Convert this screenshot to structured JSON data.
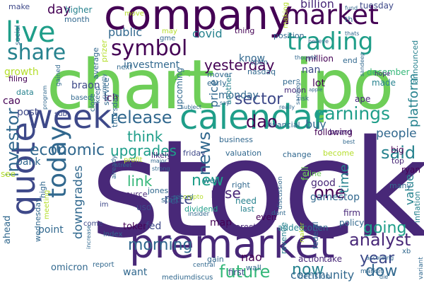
{
  "palette": [
    "#440154",
    "#482878",
    "#3e4989",
    "#31688e",
    "#26828e",
    "#1f9e89",
    "#35b779",
    "#6ece58",
    "#b5de2b",
    "#fde725"
  ],
  "words": {
    "stock": "stock",
    "chart": "chart",
    "ipo": "ipo",
    "company": "company",
    "premarket": "premarket",
    "calendar": "calendar",
    "market": "market",
    "week": "week",
    "quote": "quote",
    "live": "live",
    "symbol": "symbol",
    "trading": "trading",
    "share": "share",
    "today": "today",
    "earnings": "earnings",
    "future": "future",
    "analyst": "analyst",
    "investor": "investor",
    "release": "release",
    "economic": "economic",
    "news": "news",
    "sector": "sector",
    "dao": "dao",
    "said": "said",
    "yesterday": "yesterday",
    "morning": "morning",
    "going": "going",
    "year": "year",
    "dow": "dow",
    "now": "now",
    "upgrades": "upgrades",
    "link": "link",
    "think": "think",
    "new": "new",
    "one": "one",
    "time": "time",
    "platform": "platform",
    "downgrades": "downgrades",
    "rose": "rose",
    "rate": "rate",
    "value": "value",
    "people": "people",
    "community": "community",
    "growth": "growth",
    "price": "price",
    "day": "day",
    "public": "public",
    "covid": "covid",
    "billion": "billion",
    "tuesday": "tuesday",
    "make": "make",
    "higher": "higher",
    "month": "month",
    "investment": "investment",
    "braon": "braon",
    "cao": "cao",
    "post": "post",
    "data": "data",
    "filing": "filing",
    "lch": "lch",
    "bank": "bank",
    "see": "see",
    "ahead": "ahead",
    "point": "point",
    "omicron": "omicron",
    "want": "want",
    "token": "token",
    "fed": "fed",
    "map": "map",
    "nao": "nao",
    "interest": "interest",
    "added": "added",
    "cohen": "cohen",
    "action": "action",
    "take": "take",
    "gamestop": "gamestop",
    "good": "good",
    "line": "line",
    "buy": "buy",
    "lot": "lot",
    "nan": "nan",
    "december": "december",
    "made": "made",
    "million": "million",
    "end": "end",
    "know": "know",
    "monday": "monday",
    "nasdaq": "nasdaq",
    "moon": "moon",
    "per": "per",
    "usd": "usd",
    "jones": "jones",
    "start": "start",
    "need": "need",
    "well": "well",
    "friday": "friday",
    "likely": "likely",
    "valuation": "valuation",
    "change": "change",
    "become": "become",
    "following": "following",
    "board": "board",
    "financial": "financial",
    "firm": "firm",
    "policy": "policy",
    "federal": "federal",
    "inflation": "inflation",
    "ryan": "ryan",
    "big": "big",
    "top": "top",
    "many": "many",
    "fell": "fell",
    "right": "right",
    "source": "source",
    "gain": "gain",
    "first": "first",
    "wall": "wall",
    "even": "even",
    "last": "last",
    "revenue": "revenue",
    "decision": "decision",
    "upcoming": "upcoming",
    "business": "business",
    "another": "another",
    "ape": "ape",
    "hope": "hope",
    "announced": "announced",
    "position": "position",
    "mover": "mover",
    "early": "early",
    "open": "open",
    "thing": "thing",
    "move": "move",
    "may": "may",
    "gme": "gme",
    "next": "next",
    "average": "average",
    "prizer": "prizer",
    "social": "social",
    "service": "service",
    "thursday": "thursday",
    "keep": "keep",
    "close": "close",
    "sub": "sub",
    "based": "based",
    "gained": "gained",
    "wednesday": "wednesday",
    "high": "high",
    "meeting": "meeting",
    "come": "come",
    "report": "report",
    "im": "im",
    "index": "index",
    "medium": "medium",
    "discus": "discus",
    "central": "central",
    "making": "making",
    "th": "th",
    "fund": "fund",
    "thats": "thats",
    "believe": "believe",
    "thought": "thought",
    "risk": "risk",
    "really": "really",
    "subject": "subject",
    "say": "say",
    "best": "best",
    "street": "street",
    "dividend": "dividend",
    "record": "record",
    "crypto": "crypto",
    "insider": "insider",
    "according": "according",
    "xb": "xb",
    "variant": "variant",
    "die": "die",
    "profit": "profit",
    "major": "major",
    "strong": "strong",
    "already": "already",
    "dont": "dont",
    "increase": "increase",
    "currently": "currently",
    "discussion": "discussion",
    "program": "program",
    "sandiego": "sandiego",
    "sandeep": "sandeep",
    "apple": "apple",
    "maker": "maker",
    "market2": "market"
  }
}
